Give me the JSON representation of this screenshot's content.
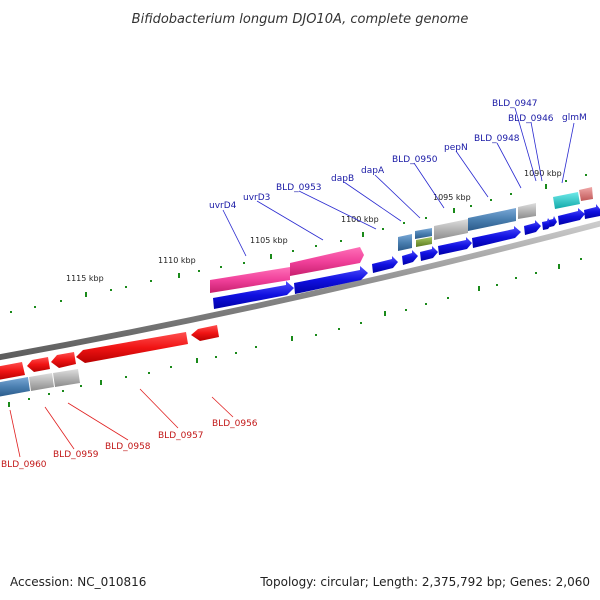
{
  "title": "Bifidobacterium longum DJO10A, complete genome",
  "footer": {
    "accession": "Accession: NC_010816",
    "summary": "Topology: circular; Length: 2,375,792 bp; Genes: 2,060"
  },
  "colors": {
    "cds_forward": "#1010e0",
    "cds_reverse": "#f01414",
    "rna_pink": "#f0409a",
    "cog_steelblue": "#4a7fb0",
    "cog_grey": "#b4b4b4",
    "cog_olive": "#7a9a3a",
    "cog_cyan": "#20c8c8",
    "cog_salmon": "#e08080",
    "backbone": "#888888",
    "ticks": "#1a8a1a"
  },
  "scale_labels": [
    "1090 kbp",
    "1095 kbp",
    "1100 kbp",
    "1105 kbp",
    "1110 kbp",
    "1115 kbp"
  ],
  "top_genes": [
    "glmM",
    "BLD_0946",
    "BLD_0947",
    "BLD_0948",
    "pepN",
    "BLD_0950",
    "dapA",
    "dapB",
    "BLD_0953",
    "uvrD3",
    "uvrD4"
  ],
  "bottom_genes": [
    "BLD_0956",
    "BLD_0957",
    "BLD_0958",
    "BLD_0959",
    "BLD_0960"
  ]
}
